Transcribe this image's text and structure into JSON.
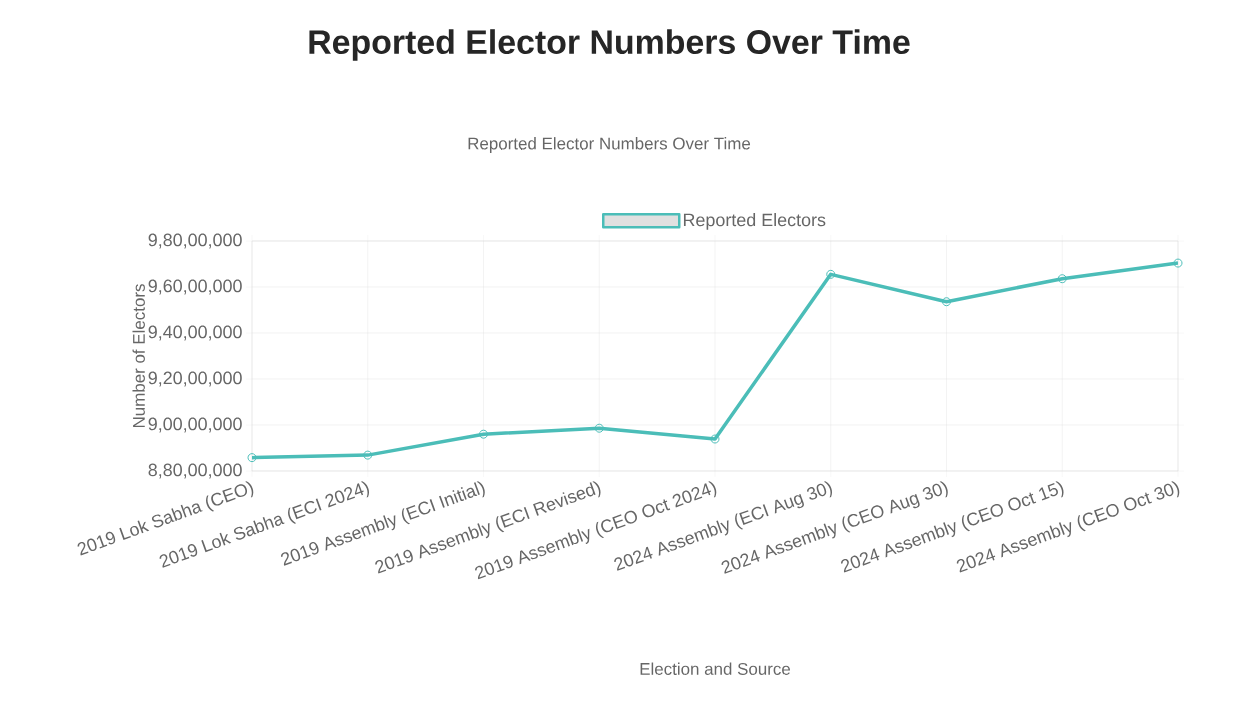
{
  "chart_data": {
    "type": "line",
    "title": "Reported Elector Numbers Over Time",
    "subtitle": "Reported Elector Numbers Over Time",
    "xlabel": "Election and Source",
    "ylabel": "Number of Electors",
    "categories": [
      "2019 Lok Sabha (CEO)",
      "2019 Lok Sabha (ECI 2024)",
      "2019 Assembly (ECI Initial)",
      "2019 Assembly (ECI Revised)",
      "2019 Assembly (CEO Oct 2024)",
      "2024 Assembly (ECI Aug 30)",
      "2024 Assembly (CEO Aug 30)",
      "2024 Assembly (CEO Oct 15)",
      "2024 Assembly (CEO Oct 30)"
    ],
    "series": [
      {
        "name": "Reported Electors",
        "color": "#4bbdb8",
        "values": [
          88580000,
          88690000,
          89600000,
          89860000,
          89390000,
          96550000,
          95360000,
          96360000,
          97040000
        ]
      }
    ],
    "ylim": [
      88000000,
      98000000
    ],
    "yticks": [
      {
        "value": 88000000,
        "label": "8,80,00,000"
      },
      {
        "value": 90000000,
        "label": "9,00,00,000"
      },
      {
        "value": 92000000,
        "label": "9,20,00,000"
      },
      {
        "value": 94000000,
        "label": "9,40,00,000"
      },
      {
        "value": 96000000,
        "label": "9,60,00,000"
      },
      {
        "value": 98000000,
        "label": "9,80,00,000"
      }
    ],
    "grid": true,
    "legend": "top",
    "marker": "circle",
    "line_style": "solid"
  }
}
